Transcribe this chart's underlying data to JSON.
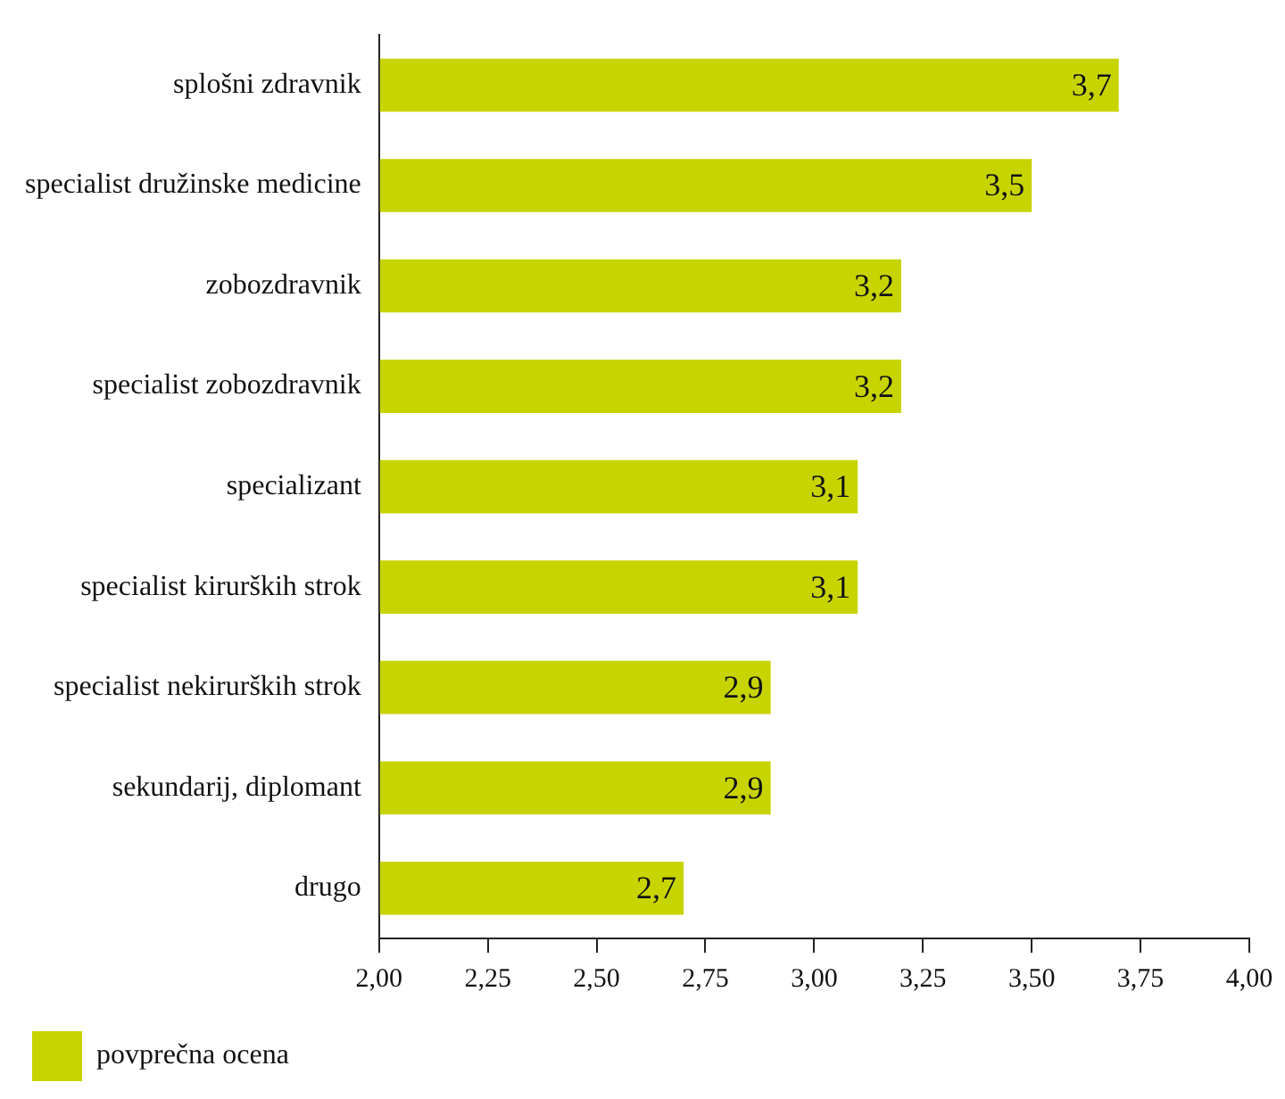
{
  "chart_data": {
    "type": "bar",
    "orientation": "horizontal",
    "categories": [
      "splošni zdravnik",
      "specialist družinske medicine",
      "zobozdravnik",
      "specialist zobozdravnik",
      "specializant",
      "specialist kirurških strok",
      "specialist nekirurških strok",
      "sekundarij, diplomant",
      "drugo"
    ],
    "series": [
      {
        "name": "povprečna ocena",
        "color": "#c8d400",
        "values": [
          3.7,
          3.5,
          3.2,
          3.2,
          3.1,
          3.1,
          2.9,
          2.9,
          2.7
        ],
        "value_labels": [
          "3,7",
          "3,5",
          "3,2",
          "3,2",
          "3,1",
          "3,1",
          "2,9",
          "2,9",
          "2,7"
        ]
      }
    ],
    "xlim": [
      2,
      4
    ],
    "xticks": [
      {
        "value": 2,
        "label": "2,00"
      },
      {
        "value": 2.25,
        "label": "2,25"
      },
      {
        "value": 2.5,
        "label": "2,50"
      },
      {
        "value": 2.75,
        "label": "2,75"
      },
      {
        "value": 3,
        "label": "3,00"
      },
      {
        "value": 3.25,
        "label": "3,25"
      },
      {
        "value": 3.5,
        "label": "3,50"
      },
      {
        "value": 3.75,
        "label": "3,75"
      },
      {
        "value": 4,
        "label": "4,00"
      }
    ],
    "grid": false,
    "legend": "bottom left"
  }
}
